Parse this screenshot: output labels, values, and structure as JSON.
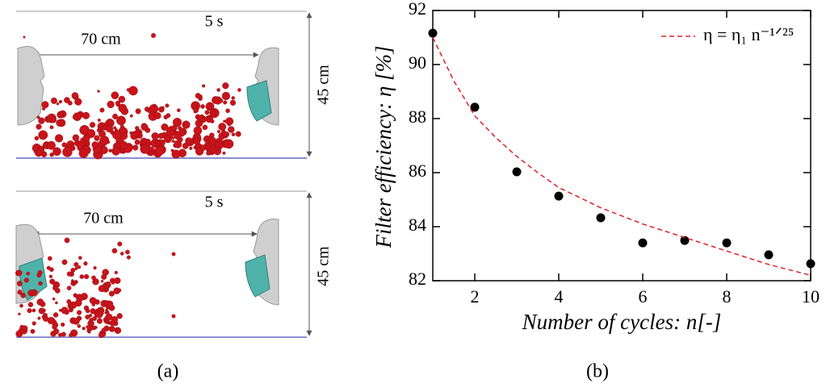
{
  "panel_a": {
    "top": {
      "time": "5 s",
      "distance": "70 cm",
      "height": "45 cm"
    },
    "bottom": {
      "time": "5 s",
      "distance": "70 cm",
      "height": "45 cm"
    },
    "label": "(a)"
  },
  "chart_data": {
    "type": "scatter",
    "x_label": "Number of cycles: n[-]",
    "y_label": "Filter efficiency:  η [%]",
    "panel_label": "(b)",
    "xlim": [
      1,
      10
    ],
    "xticks": [
      2,
      4,
      6,
      8,
      10
    ],
    "ylim": [
      82,
      92
    ],
    "yticks": [
      82,
      84,
      86,
      88,
      90,
      92
    ],
    "legend": "upper right",
    "series": [
      {
        "mode": "markers",
        "color": "#000000",
        "x": [
          1,
          2,
          3,
          4,
          5,
          6,
          7,
          8,
          9,
          10
        ],
        "values": [
          91.16,
          88.42,
          86.03,
          85.13,
          84.33,
          83.4,
          83.49,
          83.4,
          82.96,
          82.63
        ]
      },
      {
        "name": "η = η₁ n⁻¹ᐟ²⁵",
        "mode": "dashed-line",
        "color": "#e0202a",
        "x": [
          1,
          1.5,
          2,
          2.5,
          3,
          3.5,
          4,
          5,
          6,
          7,
          8,
          9,
          10
        ],
        "values": [
          91.0,
          89.4,
          88.1,
          87.3,
          86.6,
          86.0,
          85.45,
          84.7,
          84.1,
          83.6,
          83.1,
          82.6,
          82.2
        ]
      }
    ]
  }
}
